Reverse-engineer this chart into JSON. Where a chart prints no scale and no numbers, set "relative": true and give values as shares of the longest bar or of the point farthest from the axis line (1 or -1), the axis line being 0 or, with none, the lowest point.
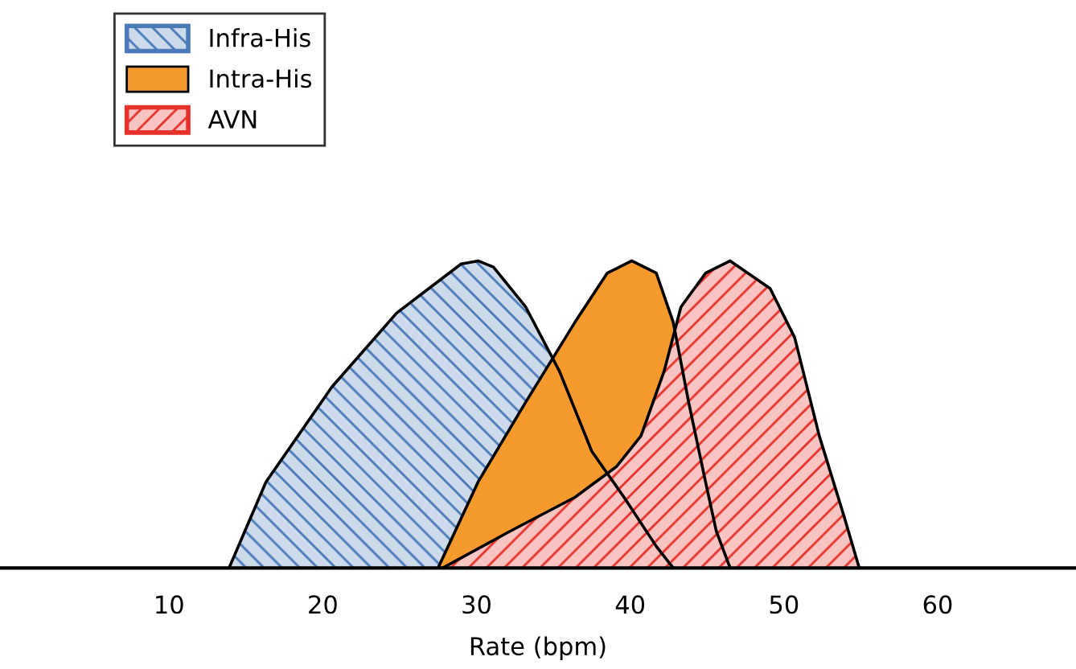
{
  "chart_data": {
    "type": "area",
    "xlabel": "Rate (bpm)",
    "relative": true,
    "xlim": [
      -1,
      69
    ],
    "xticks": [
      10,
      20,
      30,
      40,
      50,
      60
    ],
    "legend": "top left",
    "grid": false,
    "series": [
      {
        "name": "Infra-His",
        "color": "#4a7ab8",
        "x": [
          13.9,
          16.3,
          20.6,
          24.8,
          29.0,
          30.1,
          31.1,
          33.2,
          35.4,
          37.5,
          39.6,
          41.7,
          42.8
        ],
        "values": [
          0,
          0.28,
          0.59,
          0.83,
          0.99,
          1,
          0.98,
          0.85,
          0.64,
          0.38,
          0.23,
          0.07,
          0
        ]
      },
      {
        "name": "Intra-His",
        "color": "#f79a2e",
        "x": [
          27.5,
          30.1,
          33.2,
          36.4,
          38.5,
          40.1,
          41.7,
          42.8,
          43.8,
          44.9,
          45.6,
          46.5
        ],
        "values": [
          0,
          0.28,
          0.54,
          0.8,
          0.96,
          1,
          0.96,
          0.8,
          0.54,
          0.28,
          0.12,
          0
        ]
      },
      {
        "name": "AVN",
        "color": "#e8302a",
        "x": [
          27.8,
          32.2,
          36.4,
          39.1,
          40.7,
          42.2,
          43.3,
          44.9,
          46.5,
          49.1,
          50.7,
          52.3,
          53.9,
          54.9
        ],
        "values": [
          0,
          0.12,
          0.23,
          0.33,
          0.43,
          0.64,
          0.85,
          0.96,
          1,
          0.91,
          0.75,
          0.43,
          0.17,
          0
        ]
      }
    ]
  }
}
